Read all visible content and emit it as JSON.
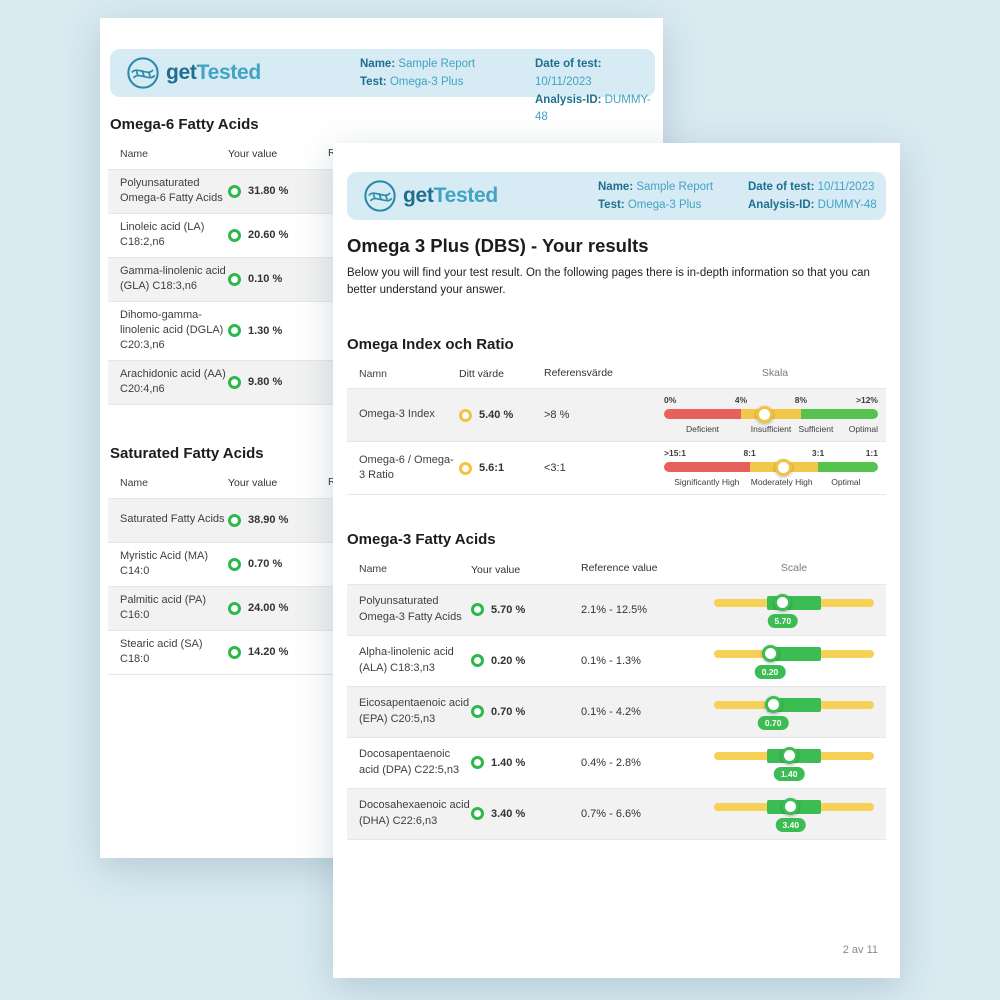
{
  "colors": {
    "page_bg": "#d9eaf1",
    "band_bg": "#d7ebf4",
    "teal_dark": "#1c6f90",
    "teal_light": "#42a3c4",
    "scale_red": "#e8605c",
    "scale_yellow": "#f2c84b",
    "scale_green": "#55c34e",
    "slider_yellow": "#f6d155",
    "slider_green": "#3cbd53",
    "status_green": "#2db84c",
    "status_yellow": "#f1c33f",
    "row_alt": "#f2f2f2"
  },
  "brand": {
    "get": "get",
    "tested": "Tested"
  },
  "header": {
    "name_label": "Name:",
    "name_value": "Sample Report",
    "test_label": "Test:",
    "test_value": "Omega-3 Plus",
    "date_label": "Date of test:",
    "date_value": "10/11/2023",
    "analysis_label": "Analysis-ID:",
    "analysis_value": "DUMMY-48"
  },
  "back_page": {
    "omega6": {
      "title": "Omega-6 Fatty Acids",
      "col_name": "Name",
      "col_value": "Your value",
      "col_ref": "Reference value",
      "rows": [
        {
          "name": "Polyunsaturated Omega-6 Fatty Acids",
          "value": "31.80 %"
        },
        {
          "name": "Linoleic acid (LA) C18:2,n6",
          "value": "20.60 %"
        },
        {
          "name": "Gamma-linolenic acid (GLA) C18:3,n6",
          "value": "0.10 %"
        },
        {
          "name": "Dihomo-gamma-linolenic acid (DGLA) C20:3,n6",
          "value": "1.30 %"
        },
        {
          "name": "Arachidonic acid (AA) C20:4,n6",
          "value": "9.80 %"
        }
      ]
    },
    "saturated": {
      "title": "Saturated Fatty Acids",
      "col_name": "Name",
      "col_value": "Your value",
      "col_ref": "Reference value",
      "rows": [
        {
          "name": "Saturated Fatty Acids",
          "value": "38.90 %"
        },
        {
          "name": "Myristic Acid (MA) C14:0",
          "value": "0.70 %"
        },
        {
          "name": "Palmitic acid (PA) C16:0",
          "value": "24.00 %"
        },
        {
          "name": "Stearic acid (SA) C18:0",
          "value": "14.20 %"
        }
      ]
    }
  },
  "front_page": {
    "title": "Omega 3 Plus (DBS) - Your results",
    "intro": "Below you will find your test result. On the following pages there is in-depth information so that you can better understand your answer.",
    "index_section": {
      "title": "Omega Index och Ratio",
      "columns": {
        "name": "Namn",
        "value": "Ditt värde",
        "ref": "Referensvärde",
        "scale": "Skala"
      },
      "rows": [
        {
          "name": "Omega-3 Index",
          "value": "5.40 %",
          "ref": ">8 %",
          "status": "yellow",
          "ticks": [
            "0%",
            "4%",
            "8%",
            ">12%"
          ],
          "tick_pos": [
            0,
            36,
            64,
            100
          ],
          "segments": [
            [
              0,
              36,
              "red"
            ],
            [
              36,
              64,
              "yellow"
            ],
            [
              64,
              100,
              "green"
            ]
          ],
          "marker_pct": 47,
          "labels": [
            "Deficient",
            "Insufficient",
            "Sufficient",
            "Optimal"
          ],
          "label_pos": [
            18,
            50,
            71,
            100
          ]
        },
        {
          "name": "Omega-6 / Omega-3 Ratio",
          "value": "5.6:1",
          "ref": "<3:1",
          "status": "yellow",
          "ticks": [
            ">15:1",
            "8:1",
            "3:1",
            "1:1"
          ],
          "tick_pos": [
            0,
            40,
            72,
            100
          ],
          "segments": [
            [
              0,
              40,
              "red"
            ],
            [
              40,
              72,
              "yellow"
            ],
            [
              72,
              100,
              "green"
            ]
          ],
          "marker_pct": 56,
          "labels": [
            "Significantly High",
            "Moderately High",
            "Optimal"
          ],
          "label_pos": [
            20,
            55,
            85
          ]
        }
      ]
    },
    "omega3_section": {
      "title": "Omega-3 Fatty Acids",
      "columns": {
        "name": "Name",
        "value": "Your value",
        "ref": "Reference value",
        "scale": "Scale"
      },
      "rows": [
        {
          "name": "Polyunsaturated Omega-3 Fatty Acids",
          "value": "5.70 %",
          "ref": "2.1% - 12.5%",
          "status": "green",
          "badge": "5.70",
          "range": [
            33,
            67
          ],
          "marker_pct": 43
        },
        {
          "name": "Alpha-linolenic acid (ALA) C18:3,n3",
          "value": "0.20 %",
          "ref": "0.1% - 1.3%",
          "status": "green",
          "badge": "0.20",
          "range": [
            33,
            67
          ],
          "marker_pct": 35
        },
        {
          "name": "Eicosapentaenoic acid (EPA) C20:5,n3",
          "value": "0.70 %",
          "ref": "0.1% - 4.2%",
          "status": "green",
          "badge": "0.70",
          "range": [
            33,
            67
          ],
          "marker_pct": 37
        },
        {
          "name": "Docosapentaenoic acid (DPA) C22:5,n3",
          "value": "1.40 %",
          "ref": "0.4% - 2.8%",
          "status": "green",
          "badge": "1.40",
          "range": [
            33,
            67
          ],
          "marker_pct": 47
        },
        {
          "name": "Docosahexaenoic acid (DHA) C22:6,n3",
          "value": "3.40 %",
          "ref": "0.7% - 6.6%",
          "status": "green",
          "badge": "3.40",
          "range": [
            33,
            67
          ],
          "marker_pct": 48
        }
      ]
    },
    "footer": "2 av 11"
  }
}
